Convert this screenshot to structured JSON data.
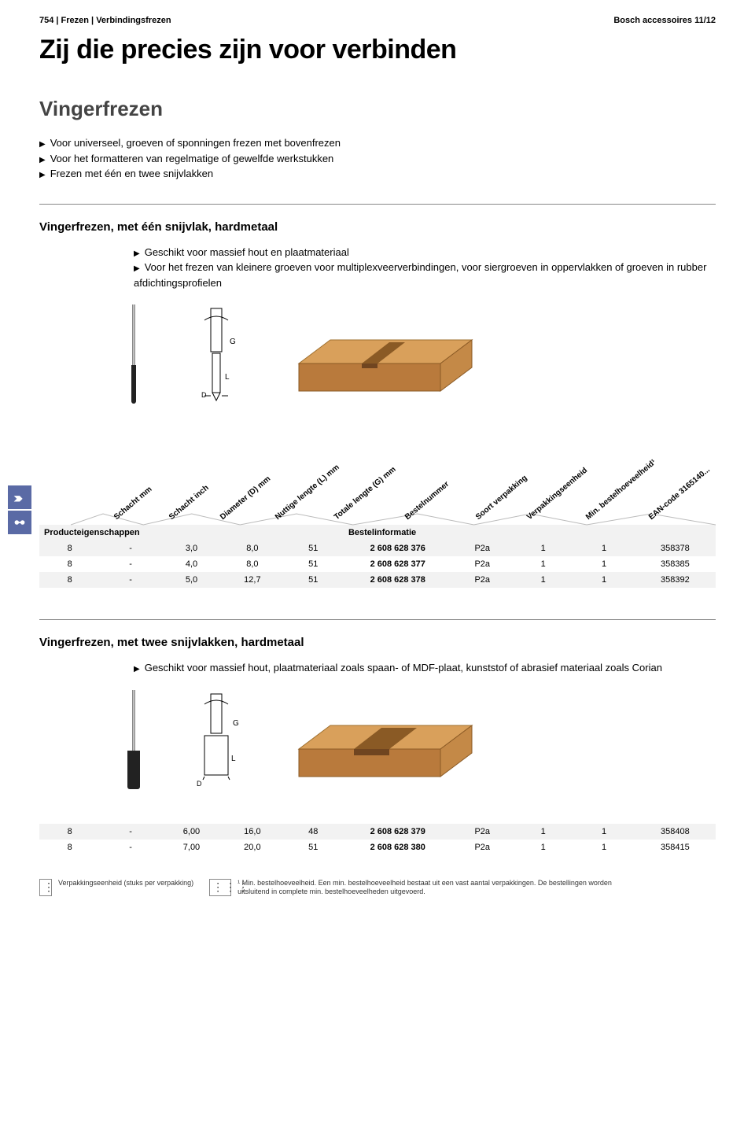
{
  "header": {
    "left": "754 | Frezen | Verbindingsfrezen",
    "right": "Bosch accessoires 11/12"
  },
  "main_title": "Zij die precies zijn voor verbinden",
  "section1": {
    "title": "Vingerfrezen",
    "bullets": [
      "Voor universeel, groeven of sponningen frezen met bovenfrezen",
      "Voor het formatteren van regelmatige of gewelfde werkstukken",
      "Frezen met één en twee snijvlakken"
    ]
  },
  "sub1": {
    "title": "Vingerfrezen, met één snijvlak, hardmetaal",
    "bullets": [
      "Geschikt voor massief hout en plaatmateriaal",
      "Voor het frezen van kleinere groeven voor multiplexveerverbindingen, voor siergroeven in oppervlakken of groeven in rubber afdichtingsprofielen"
    ]
  },
  "column_labels": {
    "c1": "Schacht mm",
    "c2": "Schacht inch",
    "c3": "Diameter (D) mm",
    "c4": "Nuttige lengte (L) mm",
    "c5": "Totale lengte (G) mm",
    "c6": "Bestelnummer",
    "c7": "Soort verpakking",
    "c8": "Verpakkingseenheid",
    "c9": "Min. bestelhoeveelheid¹",
    "c10": "EAN-code 3165140..."
  },
  "group_headers": {
    "g1": "Producteigenschappen",
    "g2": "Bestelinformatie"
  },
  "table1": [
    {
      "s": "8",
      "si": "-",
      "d": "3,0",
      "l": "8,0",
      "g": "51",
      "bn": "2 608 628 376",
      "sv": "P2a",
      "ve": "1",
      "mb": "1",
      "ean": "358378"
    },
    {
      "s": "8",
      "si": "-",
      "d": "4,0",
      "l": "8,0",
      "g": "51",
      "bn": "2 608 628 377",
      "sv": "P2a",
      "ve": "1",
      "mb": "1",
      "ean": "358385"
    },
    {
      "s": "8",
      "si": "-",
      "d": "5,0",
      "l": "12,7",
      "g": "51",
      "bn": "2 608 628 378",
      "sv": "P2a",
      "ve": "1",
      "mb": "1",
      "ean": "358392"
    }
  ],
  "sub2": {
    "title": "Vingerfrezen, met twee snijvlakken, hardmetaal",
    "bullets": [
      "Geschikt voor massief hout, plaatmateriaal zoals spaan- of MDF-plaat, kunststof of abrasief materiaal zoals Corian"
    ]
  },
  "table2": [
    {
      "s": "8",
      "si": "-",
      "d": "6,00",
      "l": "16,0",
      "g": "48",
      "bn": "2 608 628 379",
      "sv": "P2a",
      "ve": "1",
      "mb": "1",
      "ean": "358408"
    },
    {
      "s": "8",
      "si": "-",
      "d": "7,00",
      "l": "20,0",
      "g": "51",
      "bn": "2 608 628 380",
      "sv": "P2a",
      "ve": "1",
      "mb": "1",
      "ean": "358415"
    }
  ],
  "footer": {
    "left_label": "Verpakkingseenheid (stuks per verpakking)",
    "right_label": "¹ Min. bestelhoeveelheid. Een min. bestelhoeveelheid bestaat uit een vast aantal verpakkingen. De bestellingen worden uitsluitend in complete min. bestelhoeveelheden uitgevoerd."
  },
  "col_positions": {
    "c1": 60,
    "c2": 130,
    "c3": 195,
    "c4": 265,
    "c5": 340,
    "c6": 430,
    "c7": 520,
    "c8": 585,
    "c9": 660,
    "c10": 740
  }
}
